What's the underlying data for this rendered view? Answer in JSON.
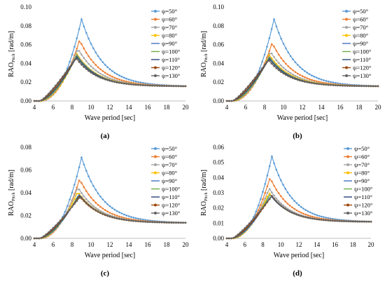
{
  "figure": {
    "legend_labels": [
      "ψ=50°",
      "ψ=60°",
      "ψ=70°",
      "ψ=80°",
      "ψ=90°",
      "ψ=100°",
      "ψ=110°",
      "ψ=120°",
      "ψ=130°"
    ],
    "series_colors": [
      "#5b9bd5",
      "#ed7d31",
      "#a5a5a5",
      "#ffc000",
      "#4472c4",
      "#70ad47",
      "#264478",
      "#9e480e",
      "#636363"
    ]
  },
  "chart_data": [
    {
      "type": "line",
      "panel_label": "(a)",
      "xlabel": "Wave period [sec]",
      "ylabel_main": "RAO",
      "ylabel_sub": "Pitch",
      "ylabel_unit": "[rad/m]",
      "xlim": [
        4,
        20
      ],
      "ylim": [
        0,
        0.1
      ],
      "x_ticks": [
        "4",
        "6",
        "8",
        "10",
        "12",
        "14",
        "16",
        "18",
        "20"
      ],
      "y_ticks": [
        "0.00",
        "0.02",
        "0.04",
        "0.06",
        "0.08",
        "0.10"
      ],
      "grid": false,
      "legend": "right",
      "series": [
        {
          "name": "ψ=50°",
          "peak_x": 9.0,
          "peak_y": 0.087
        },
        {
          "name": "ψ=60°",
          "peak_x": 8.8,
          "peak_y": 0.065
        },
        {
          "name": "ψ=70°",
          "peak_x": 8.6,
          "peak_y": 0.056
        },
        {
          "name": "ψ=80°",
          "peak_x": 8.5,
          "peak_y": 0.05
        },
        {
          "name": "ψ=90°",
          "peak_x": 8.5,
          "peak_y": 0.049
        },
        {
          "name": "ψ=100°",
          "peak_x": 8.5,
          "peak_y": 0.048
        },
        {
          "name": "ψ=110°",
          "peak_x": 8.5,
          "peak_y": 0.047
        },
        {
          "name": "ψ=120°",
          "peak_x": 8.4,
          "peak_y": 0.046
        },
        {
          "name": "ψ=130°",
          "peak_x": 8.4,
          "peak_y": 0.046
        }
      ]
    },
    {
      "type": "line",
      "panel_label": "(b)",
      "xlabel": "Wave period [sec]",
      "ylabel_main": "RAO",
      "ylabel_sub": "Pitch",
      "ylabel_unit": "[rad/m]",
      "xlim": [
        4,
        20
      ],
      "ylim": [
        0,
        0.1
      ],
      "x_ticks": [
        "4",
        "6",
        "8",
        "10",
        "12",
        "14",
        "16",
        "18",
        "20"
      ],
      "y_ticks": [
        "0.00",
        "0.02",
        "0.04",
        "0.06",
        "0.08",
        "0.10"
      ],
      "grid": false,
      "legend": "right",
      "series": [
        {
          "name": "ψ=50°",
          "peak_x": 9.0,
          "peak_y": 0.087
        },
        {
          "name": "ψ=60°",
          "peak_x": 8.8,
          "peak_y": 0.062
        },
        {
          "name": "ψ=70°",
          "peak_x": 8.6,
          "peak_y": 0.053
        },
        {
          "name": "ψ=80°",
          "peak_x": 8.5,
          "peak_y": 0.049
        },
        {
          "name": "ψ=90°",
          "peak_x": 8.5,
          "peak_y": 0.047
        },
        {
          "name": "ψ=100°",
          "peak_x": 8.5,
          "peak_y": 0.046
        },
        {
          "name": "ψ=110°",
          "peak_x": 8.5,
          "peak_y": 0.045
        },
        {
          "name": "ψ=120°",
          "peak_x": 8.4,
          "peak_y": 0.044
        },
        {
          "name": "ψ=130°",
          "peak_x": 8.4,
          "peak_y": 0.044
        }
      ]
    },
    {
      "type": "line",
      "panel_label": "(c)",
      "xlabel": "Wave period [sec]",
      "ylabel_main": "RAO",
      "ylabel_sub": "Pitch",
      "ylabel_unit": "[rad/m]",
      "xlim": [
        4,
        20
      ],
      "ylim": [
        0,
        0.08
      ],
      "x_ticks": [
        "4",
        "6",
        "8",
        "10",
        "12",
        "14",
        "16",
        "18",
        "20"
      ],
      "y_ticks": [
        "0.00",
        "0.02",
        "0.04",
        "0.06",
        "0.08"
      ],
      "grid": false,
      "legend": "right",
      "series": [
        {
          "name": "ψ=50°",
          "peak_x": 9.0,
          "peak_y": 0.071
        },
        {
          "name": "ψ=60°",
          "peak_x": 8.8,
          "peak_y": 0.052
        },
        {
          "name": "ψ=70°",
          "peak_x": 8.6,
          "peak_y": 0.045
        },
        {
          "name": "ψ=80°",
          "peak_x": 8.6,
          "peak_y": 0.041
        },
        {
          "name": "ψ=90°",
          "peak_x": 8.7,
          "peak_y": 0.039
        },
        {
          "name": "ψ=100°",
          "peak_x": 8.7,
          "peak_y": 0.038
        },
        {
          "name": "ψ=110°",
          "peak_x": 8.8,
          "peak_y": 0.038
        },
        {
          "name": "ψ=120°",
          "peak_x": 8.8,
          "peak_y": 0.037
        },
        {
          "name": "ψ=130°",
          "peak_x": 8.9,
          "peak_y": 0.037
        }
      ]
    },
    {
      "type": "line",
      "panel_label": "(d)",
      "xlabel": "Wave period [sec]",
      "ylabel_main": "RAO",
      "ylabel_sub": "Pitch",
      "ylabel_unit": "[rad/m]",
      "xlim": [
        4,
        20
      ],
      "ylim": [
        0,
        0.06
      ],
      "x_ticks": [
        "4",
        "6",
        "8",
        "10",
        "12",
        "14",
        "16",
        "18",
        "20"
      ],
      "y_ticks": [
        "0.00",
        "0.01",
        "0.02",
        "0.03",
        "0.04",
        "0.05",
        "0.06"
      ],
      "grid": false,
      "legend": "right",
      "series": [
        {
          "name": "ψ=50°",
          "peak_x": 9.0,
          "peak_y": 0.054
        },
        {
          "name": "ψ=60°",
          "peak_x": 8.8,
          "peak_y": 0.04
        },
        {
          "name": "ψ=70°",
          "peak_x": 8.7,
          "peak_y": 0.033
        },
        {
          "name": "ψ=80°",
          "peak_x": 8.7,
          "peak_y": 0.03
        },
        {
          "name": "ψ=90°",
          "peak_x": 8.8,
          "peak_y": 0.029
        },
        {
          "name": "ψ=100°",
          "peak_x": 8.8,
          "peak_y": 0.029
        },
        {
          "name": "ψ=110°",
          "peak_x": 8.9,
          "peak_y": 0.028
        },
        {
          "name": "ψ=120°",
          "peak_x": 9.0,
          "peak_y": 0.028
        },
        {
          "name": "ψ=130°",
          "peak_x": 9.0,
          "peak_y": 0.028
        }
      ]
    }
  ]
}
